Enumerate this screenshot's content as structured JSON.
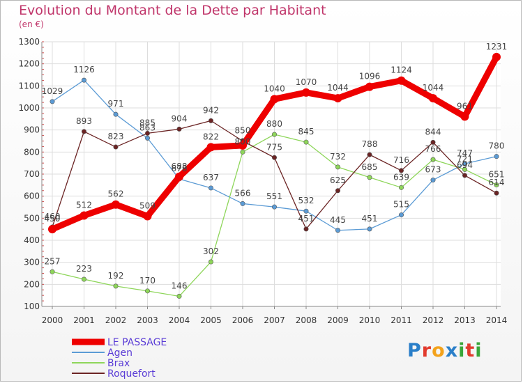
{
  "header": {
    "title": "Evolution du Montant de la Dette par Habitant",
    "subtitle": "(en €)"
  },
  "logo": {
    "text": "Proxiti",
    "colors": [
      "#2a7fc9",
      "#e23b2e",
      "#f3a21b",
      "#2a7fc9",
      "#3aa63a",
      "#e23b2e",
      "#3aa63a"
    ]
  },
  "chart_data": {
    "type": "line",
    "title": "Evolution du Montant de la Dette par Habitant",
    "subtitle": "(en €)",
    "x": [
      "2000",
      "2001",
      "2002",
      "2003",
      "2004",
      "2005",
      "2006",
      "2007",
      "2008",
      "2009",
      "2010",
      "2011",
      "2012",
      "2013",
      "2014"
    ],
    "yticks": [
      100,
      200,
      300,
      400,
      500,
      600,
      700,
      800,
      900,
      1000,
      1100,
      1200,
      1300
    ],
    "ylim": [
      100,
      1300
    ],
    "grid": true,
    "legend_position": "bottom-left",
    "series": [
      {
        "name": "LE PASSAGE",
        "color": "#ee0000",
        "values": [
          450,
          512,
          562,
          509,
          688,
          822,
          830,
          1040,
          1070,
          1044,
          1096,
          1124,
          1044,
          961,
          1231
        ],
        "labels": [
          "450",
          "512",
          "562",
          "509",
          "688",
          "822",
          "",
          "1040",
          "1070",
          "1044",
          "1096",
          "1124",
          "1044",
          "961",
          "1231"
        ]
      },
      {
        "name": "Agen",
        "color": "#5b9bd5",
        "values": [
          1029,
          1126,
          971,
          863,
          678,
          637,
          566,
          551,
          532,
          445,
          451,
          515,
          673,
          747,
          780
        ],
        "labels": [
          "1029",
          "1126",
          "971",
          "863",
          "678",
          "637",
          "566",
          "551",
          "532",
          "445",
          "451",
          "515",
          "673",
          "747",
          "780"
        ]
      },
      {
        "name": "Brax",
        "color": "#8ed65a",
        "values": [
          257,
          223,
          192,
          170,
          146,
          302,
          800,
          880,
          845,
          732,
          685,
          639,
          766,
          721,
          651
        ],
        "labels": [
          "257",
          "223",
          "192",
          "170",
          "146",
          "302",
          "800",
          "880",
          "845",
          "732",
          "685",
          "639",
          "766",
          "721",
          "651"
        ]
      },
      {
        "name": "Roquefort",
        "color": "#6b2424",
        "values": [
          460,
          893,
          823,
          885,
          904,
          942,
          850,
          775,
          451,
          625,
          788,
          716,
          844,
          694,
          614
        ],
        "labels": [
          "460",
          "893",
          "823",
          "885",
          "904",
          "942",
          "850",
          "775",
          "451",
          "625",
          "788",
          "716",
          "844",
          "694",
          "614"
        ]
      }
    ]
  }
}
